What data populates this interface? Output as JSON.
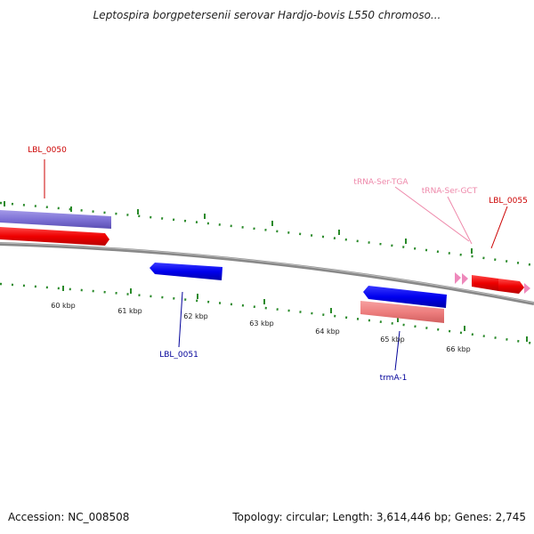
{
  "title": "Leptospira borgpetersenii serovar Hardjo-bovis L550 chromoso...",
  "ticks": [
    "60 kbp",
    "61 kbp",
    "62 kbp",
    "63 kbp",
    "64 kbp",
    "65 kbp",
    "66 kbp"
  ],
  "gene_labels": {
    "lbl_0050": "LBL_0050",
    "lbl_0051": "LBL_0051",
    "lbl_0055": "LBL_0055",
    "trna_ser_tga": "tRNA-Ser-TGA",
    "trna_ser_gct": "tRNA-Ser-GCT",
    "trma_1": "trmA-1"
  },
  "footer": {
    "accession": "Accession: NC_008508",
    "summary": "Topology: circular; Length: 3,614,446 bp; Genes: 2,745"
  },
  "colors": {
    "forward_cds": "#ff0000",
    "reverse_cds": "#0000ee",
    "label_forward": "#cc0000",
    "label_reverse": "#000099",
    "label_trna": "#ee88aa",
    "dots": "#2a8a2a",
    "backbone": "#777777"
  }
}
